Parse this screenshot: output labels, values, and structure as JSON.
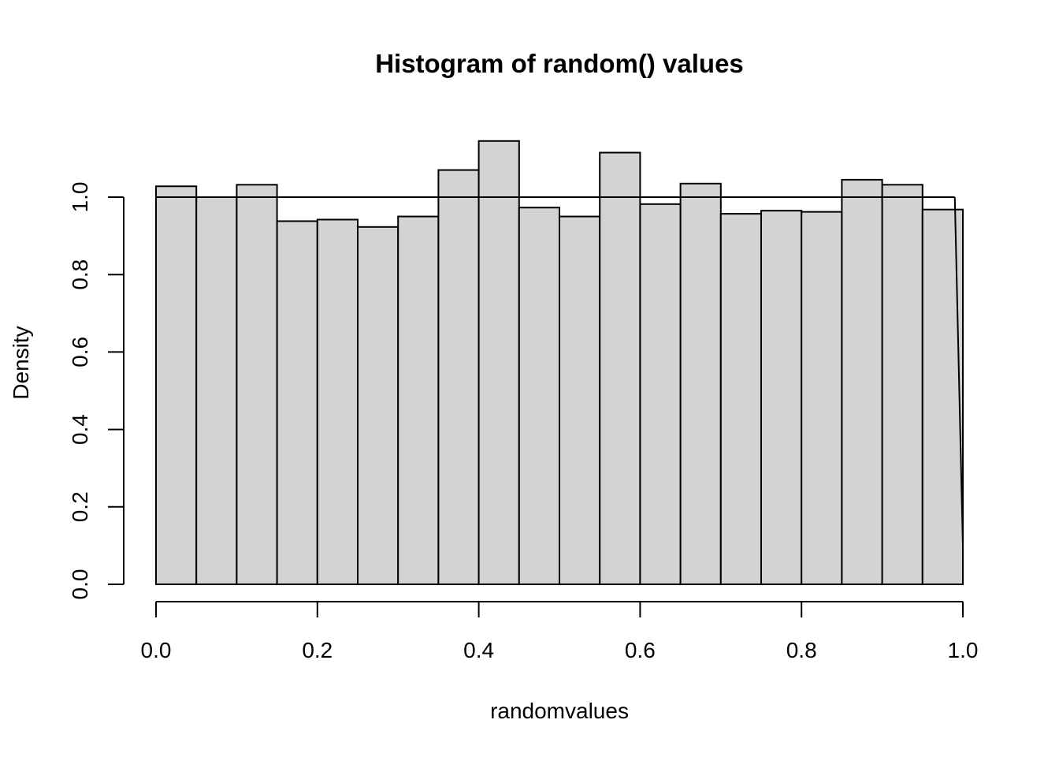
{
  "chart_data": {
    "type": "bar",
    "title": "Histogram of random() values",
    "xlabel": "randomvalues",
    "ylabel": "Density",
    "xlim": [
      0,
      1
    ],
    "ylim": [
      0,
      1.2
    ],
    "x_ticks": [
      "0.0",
      "0.2",
      "0.4",
      "0.6",
      "0.8",
      "1.0"
    ],
    "y_ticks": [
      "0.0",
      "0.2",
      "0.4",
      "0.6",
      "0.8",
      "1.0"
    ],
    "bin_width": 0.05,
    "bin_starts": [
      0.0,
      0.05,
      0.1,
      0.15,
      0.2,
      0.25,
      0.3,
      0.35,
      0.4,
      0.45,
      0.5,
      0.55,
      0.6,
      0.65,
      0.7,
      0.75,
      0.8,
      0.85,
      0.9,
      0.95
    ],
    "values": [
      1.028,
      1.0,
      1.032,
      0.938,
      0.942,
      0.923,
      0.95,
      1.07,
      1.145,
      0.973,
      0.95,
      1.115,
      0.982,
      1.035,
      0.957,
      0.965,
      0.962,
      1.045,
      1.032,
      0.968
    ],
    "reference_line": {
      "y": 1.0,
      "x_from": 0.0,
      "x_to": 0.99,
      "drop_to": [
        1.0,
        0.1
      ]
    },
    "bar_fill": "#d3d3d3",
    "grid": false,
    "legend": "none"
  }
}
